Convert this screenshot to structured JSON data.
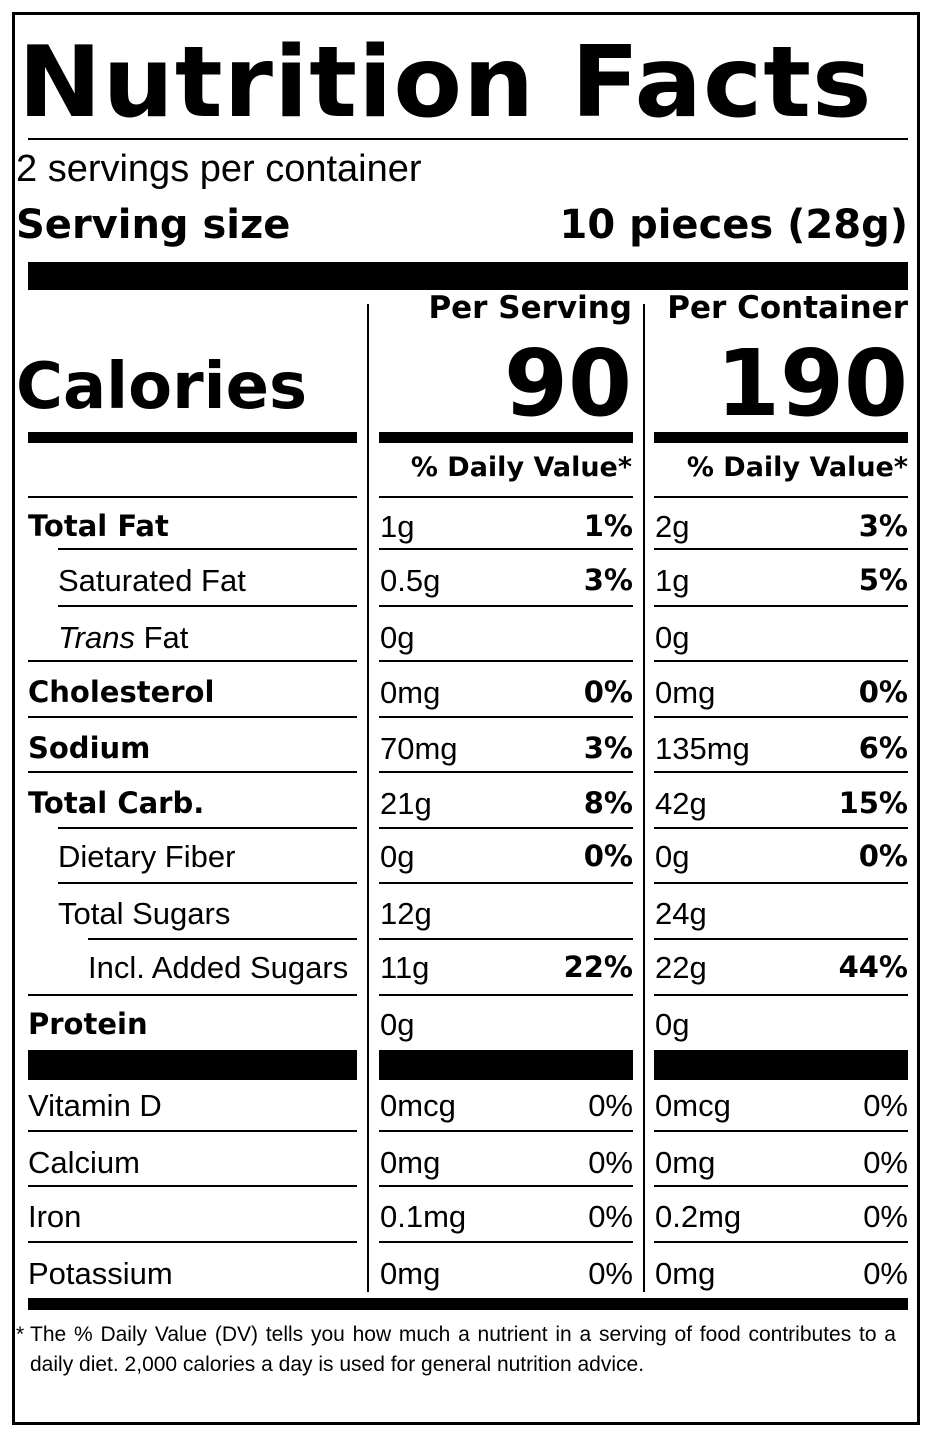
{
  "title": "Nutrition Facts",
  "servings_per_container": "2 servings per container",
  "serving_size_label": "Serving size",
  "serving_size_value": "10 pieces (28g)",
  "col_per_serving": "Per Serving",
  "col_per_container": "Per Container",
  "calories_label": "Calories",
  "calories_per_serving": "90",
  "calories_per_container": "190",
  "daily_value_header": "% Daily Value*",
  "nutrients": [
    {
      "name": "Total Fat",
      "serving_amt": "1g",
      "serving_dv": "1%",
      "container_amt": "2g",
      "container_dv": "3%"
    },
    {
      "name": "Saturated Fat",
      "serving_amt": "0.5g",
      "serving_dv": "3%",
      "container_amt": "1g",
      "container_dv": "5%"
    },
    {
      "name_italic": "Trans",
      "name": " Fat",
      "serving_amt": "0g",
      "serving_dv": "",
      "container_amt": "0g",
      "container_dv": ""
    },
    {
      "name": "Cholesterol",
      "serving_amt": "0mg",
      "serving_dv": "0%",
      "container_amt": "0mg",
      "container_dv": "0%"
    },
    {
      "name": "Sodium",
      "serving_amt": "70mg",
      "serving_dv": "3%",
      "container_amt": "135mg",
      "container_dv": "6%"
    },
    {
      "name": "Total Carb.",
      "serving_amt": "21g",
      "serving_dv": "8%",
      "container_amt": "42g",
      "container_dv": "15%"
    },
    {
      "name": "Dietary Fiber",
      "serving_amt": "0g",
      "serving_dv": "0%",
      "container_amt": "0g",
      "container_dv": "0%"
    },
    {
      "name": "Total Sugars",
      "serving_amt": "12g",
      "serving_dv": "",
      "container_amt": "24g",
      "container_dv": ""
    },
    {
      "name": "Incl. Added Sugars",
      "serving_amt": "11g",
      "serving_dv": "22%",
      "container_amt": "22g",
      "container_dv": "44%"
    },
    {
      "name": "Protein",
      "serving_amt": "0g",
      "serving_dv": "",
      "container_amt": "0g",
      "container_dv": ""
    }
  ],
  "vitamins": [
    {
      "name": "Vitamin D",
      "serving_amt": "0mcg",
      "serving_dv": "0%",
      "container_amt": "0mcg",
      "container_dv": "0%"
    },
    {
      "name": "Calcium",
      "serving_amt": "0mg",
      "serving_dv": "0%",
      "container_amt": "0mg",
      "container_dv": "0%"
    },
    {
      "name": "Iron",
      "serving_amt": "0.1mg",
      "serving_dv": "0%",
      "container_amt": "0.2mg",
      "container_dv": "0%"
    },
    {
      "name": "Potassium",
      "serving_amt": "0mg",
      "serving_dv": "0%",
      "container_amt": "0mg",
      "container_dv": "0%"
    }
  ],
  "footnote_star": "*",
  "footnote": "The % Daily Value (DV) tells you how much a nutrient in a serving of food contributes to a daily diet. 2,000 calories a day is used for general nutrition advice."
}
